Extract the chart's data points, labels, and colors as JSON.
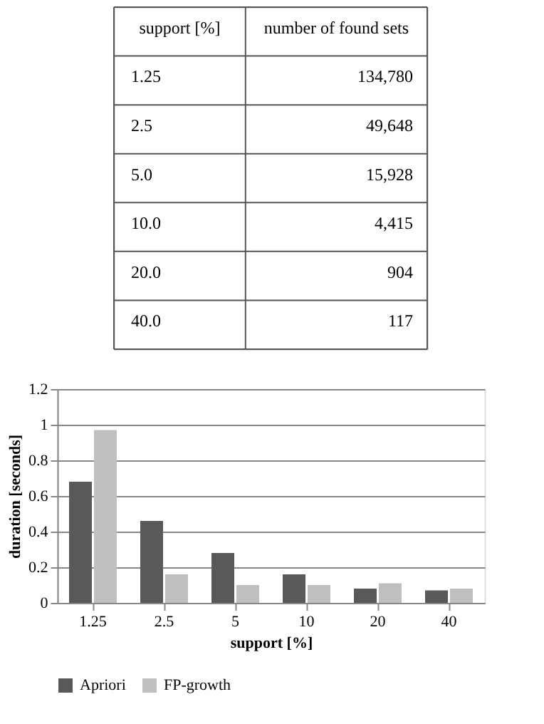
{
  "chart_data": [
    {
      "type": "other",
      "xlabel": "support [%]",
      "ylabel": "number of found sets",
      "categories": [
        "1.25",
        "2.5",
        "5.0",
        "10.0",
        "20.0",
        "40.0"
      ],
      "value_labels": [
        "134,780",
        "49,648",
        "15,928",
        "4,415",
        "904",
        "117"
      ]
    },
    {
      "type": "bar",
      "xlabel": "support [%]",
      "ylabel": "duration [seconds]",
      "categories": [
        "1.25",
        "2.5",
        "5",
        "10",
        "20",
        "40"
      ],
      "series": [
        {
          "name": "Apriori",
          "color": "#595959",
          "values": [
            0.68,
            0.46,
            0.28,
            0.16,
            0.08,
            0.07
          ]
        },
        {
          "name": "FP-growth",
          "color": "#bfbfbf",
          "values": [
            0.97,
            0.16,
            0.1,
            0.1,
            0.11,
            0.08
          ]
        }
      ],
      "ylim": [
        0,
        1.2
      ],
      "yticks": [
        {
          "value": 0,
          "label": "0"
        },
        0.2,
        0.4,
        0.6,
        0.8,
        {
          "value": 1,
          "label": "1"
        },
        1.2
      ],
      "grid": "y",
      "legend": "bottom"
    }
  ]
}
